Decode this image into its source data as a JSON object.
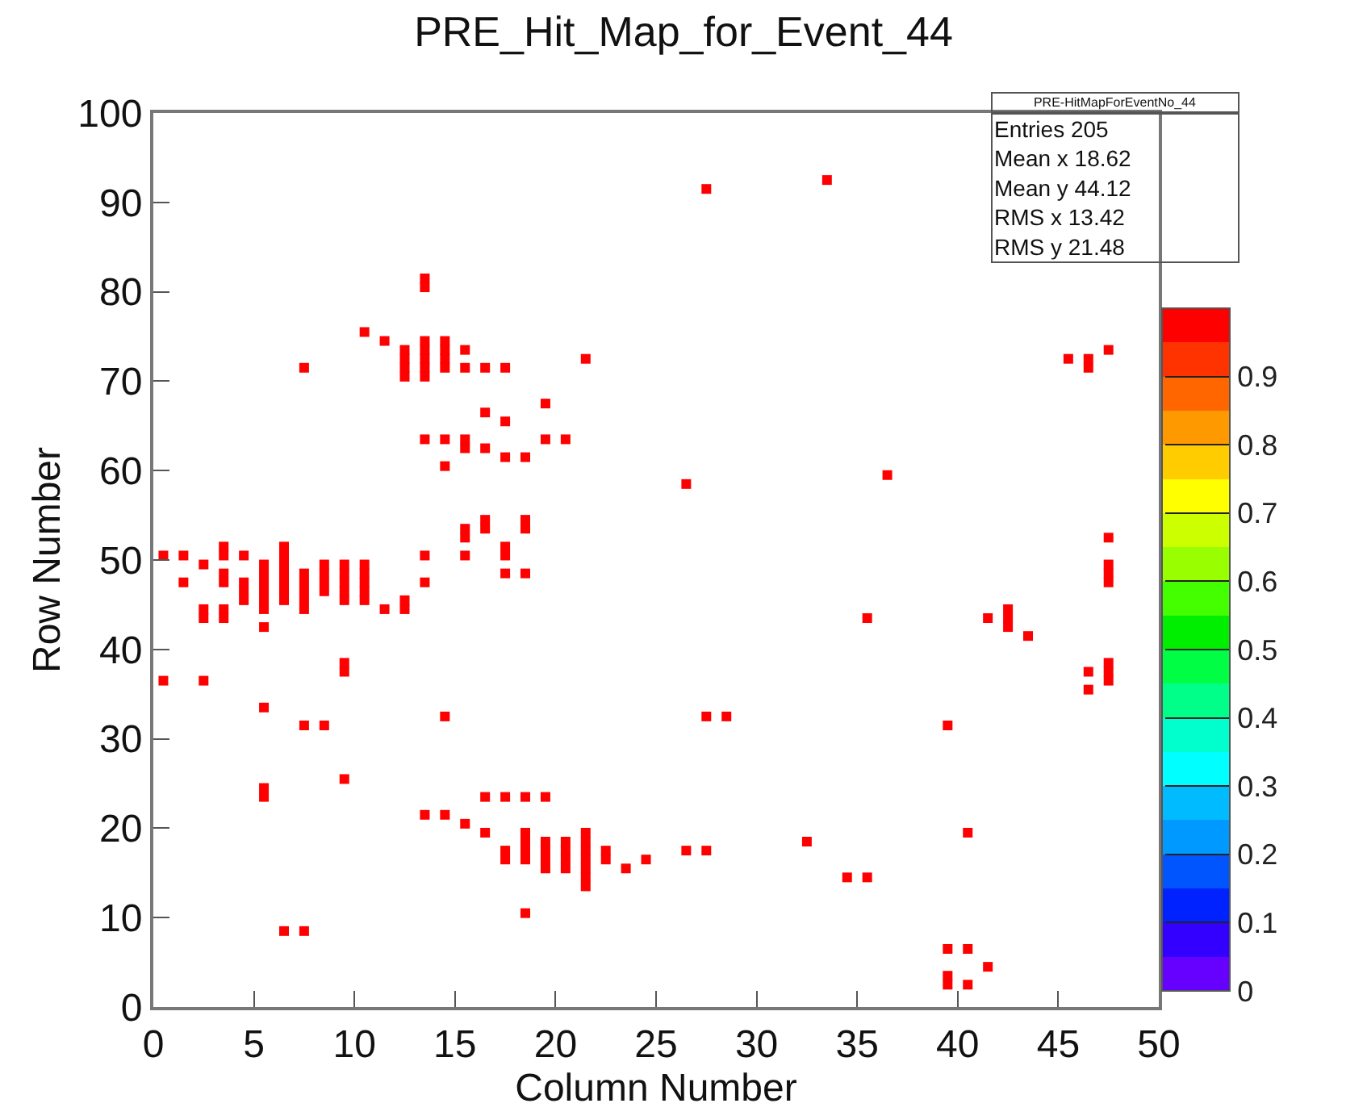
{
  "chart_data": {
    "type": "scatter",
    "title": "PRE_Hit_Map_for_Event_44",
    "xlabel": "Column Number",
    "ylabel": "Row Number",
    "xlim": [
      0,
      50
    ],
    "xticks": [
      0,
      5,
      10,
      15,
      20,
      25,
      30,
      35,
      40,
      45,
      50
    ],
    "ylim": [
      0,
      100
    ],
    "yticks": [
      0,
      10,
      20,
      30,
      40,
      50,
      60,
      70,
      80,
      90,
      100
    ],
    "legend": false,
    "marker": "square",
    "clim": [
      0,
      1
    ],
    "cticks": [
      0,
      0.1,
      0.2,
      0.3,
      0.4,
      0.5,
      0.6,
      0.7,
      0.8,
      0.9
    ],
    "annotations": [
      "PRE-HitMapForEventNo_44",
      "Entries 205",
      "Mean x 18.62",
      "Mean y 44.12",
      "RMS x 13.42",
      "RMS y 21.48"
    ],
    "series": [
      {
        "x": [
          13.5,
          13.5,
          10.5,
          11.5,
          12.5,
          12.5,
          12.5,
          12.5,
          13.5,
          13.5,
          13.5,
          13.5,
          13.5,
          14.5,
          14.5,
          14.5,
          14.5,
          15.5,
          15.5,
          16.5,
          17.5,
          21.5,
          7.5,
          16.5,
          17.5,
          13.5,
          14.5,
          15.5,
          15.5,
          16.5,
          17.5,
          18.5,
          14.5,
          19.5,
          19.5,
          20.5,
          26.5,
          36.5,
          27.5,
          33.5,
          15.5,
          15.5,
          15.5,
          16.5,
          16.5,
          17.5,
          17.5,
          17.5,
          18.5,
          18.5,
          18.5,
          13.5,
          13.5,
          0.5,
          0.5,
          1.5,
          1.5,
          2.5,
          2.5,
          2.5,
          3.5,
          3.5,
          3.5,
          3.5,
          3.5,
          3.5,
          4.5,
          4.5,
          4.5,
          4.5,
          5.5,
          5.5,
          5.5,
          5.5,
          5.5,
          5.5,
          5.5,
          6.5,
          6.5,
          6.5,
          6.5,
          6.5,
          6.5,
          6.5,
          7.5,
          7.5,
          7.5,
          7.5,
          7.5,
          8.5,
          8.5,
          8.5,
          8.5,
          9.5,
          9.5,
          9.5,
          9.5,
          9.5,
          10.5,
          10.5,
          10.5,
          10.5,
          10.5,
          11.5,
          12.5,
          12.5,
          2.5,
          9.5,
          9.5,
          5.5,
          14.5,
          7.5,
          8.5,
          27.5,
          28.5,
          5.5,
          5.5,
          9.5,
          6.5,
          7.5,
          13.5,
          14.5,
          15.5,
          16.5,
          16.5,
          17.5,
          17.5,
          17.5,
          18.5,
          18.5,
          18.5,
          18.5,
          18.5,
          18.5,
          19.5,
          19.5,
          19.5,
          19.5,
          19.5,
          20.5,
          20.5,
          20.5,
          20.5,
          21.5,
          21.5,
          21.5,
          21.5,
          21.5,
          21.5,
          21.5,
          22.5,
          22.5,
          23.5,
          24.5,
          26.5,
          27.5,
          32.5,
          34.5,
          35.5,
          35.5,
          41.5,
          42.5,
          42.5,
          42.5,
          43.5,
          39.5,
          40.5,
          39.5,
          39.5,
          39.5,
          40.5,
          40.5,
          41.5,
          46.5,
          46.5,
          47.5,
          47.5,
          47.5,
          47.5,
          47.5,
          47.5,
          47.5,
          45.5,
          46.5,
          46.5,
          47.5
        ],
        "values": [
          80.5,
          81.5,
          75.5,
          74.5,
          73.5,
          72.5,
          71.5,
          70.5,
          74.5,
          73.5,
          72.5,
          71.5,
          70.5,
          74.5,
          73.5,
          72.5,
          71.5,
          73.5,
          71.5,
          71.5,
          71.5,
          72.5,
          71.5,
          66.5,
          65.5,
          63.5,
          63.5,
          62.5,
          63.5,
          62.5,
          61.5,
          61.5,
          60.5,
          67.5,
          63.5,
          63.5,
          58.5,
          59.5,
          91.5,
          92.5,
          50.5,
          52.5,
          53.5,
          53.5,
          54.5,
          51.5,
          50.5,
          48.5,
          53.5,
          54.5,
          48.5,
          50.5,
          47.5,
          50.5,
          36.5,
          50.5,
          47.5,
          49.5,
          44.5,
          43.5,
          51.5,
          50.5,
          48.5,
          47.5,
          44.5,
          43.5,
          50.5,
          47.5,
          46.5,
          45.5,
          49.5,
          48.5,
          47.5,
          46.5,
          45.5,
          44.5,
          42.5,
          51.5,
          50.5,
          49.5,
          48.5,
          47.5,
          46.5,
          45.5,
          48.5,
          47.5,
          46.5,
          45.5,
          44.5,
          49.5,
          48.5,
          47.5,
          46.5,
          49.5,
          48.5,
          47.5,
          46.5,
          45.5,
          49.5,
          48.5,
          47.5,
          46.5,
          45.5,
          44.5,
          45.5,
          44.5,
          36.5,
          38.5,
          37.5,
          33.5,
          32.5,
          31.5,
          31.5,
          32.5,
          32.5,
          24.5,
          23.5,
          25.5,
          8.5,
          8.5,
          21.5,
          21.5,
          20.5,
          23.5,
          19.5,
          23.5,
          17.5,
          16.5,
          23.5,
          19.5,
          18.5,
          17.5,
          16.5,
          10.5,
          23.5,
          18.5,
          17.5,
          16.5,
          15.5,
          18.5,
          17.5,
          16.5,
          15.5,
          19.5,
          18.5,
          17.5,
          16.5,
          15.5,
          14.5,
          13.5,
          17.5,
          16.5,
          15.5,
          16.5,
          17.5,
          17.5,
          18.5,
          14.5,
          14.5,
          43.5,
          43.5,
          44.5,
          43.5,
          42.5,
          41.5,
          31.5,
          19.5,
          6.5,
          3.5,
          2.5,
          6.5,
          2.5,
          4.5,
          37.5,
          35.5,
          38.5,
          37.5,
          36.5,
          52.5,
          49.5,
          48.5,
          47.5,
          72.5,
          72.5,
          71.5,
          73.5
        ],
        "cvalues": [
          1,
          1,
          1,
          1,
          1,
          1,
          1,
          1,
          1,
          1,
          1,
          1,
          1,
          1,
          1,
          1,
          1,
          1,
          1,
          1,
          1,
          1,
          1,
          1,
          1,
          1,
          1,
          1,
          1,
          1,
          1,
          1,
          1,
          1,
          1,
          1,
          1,
          1,
          1,
          1,
          1,
          1,
          1,
          1,
          1,
          1,
          1,
          1,
          1,
          1,
          1,
          1,
          1,
          1,
          1,
          1,
          1,
          1,
          1,
          1,
          1,
          1,
          1,
          1,
          1,
          1,
          1,
          1,
          1,
          1,
          1,
          1,
          1,
          1,
          1,
          1,
          1,
          1,
          1,
          1,
          1,
          1,
          1,
          1,
          1,
          1,
          1,
          1,
          1,
          1,
          1,
          1,
          1,
          1,
          1,
          1,
          1,
          1,
          1,
          1,
          1,
          1,
          1,
          1,
          1,
          1,
          1,
          1,
          1,
          1,
          1,
          1,
          1,
          1,
          1,
          1,
          1,
          1,
          1,
          1,
          1,
          1,
          1,
          1,
          1,
          1,
          1,
          1,
          1,
          1,
          1,
          1,
          1,
          1,
          1,
          1,
          1,
          1,
          1,
          1,
          1,
          1,
          1,
          1,
          1,
          1,
          1,
          1,
          1,
          1,
          1,
          1,
          1,
          1,
          1,
          1,
          1,
          1,
          1,
          1,
          1,
          1,
          1,
          1,
          1,
          1,
          1,
          1,
          1,
          1,
          1,
          1,
          1,
          1,
          1,
          1,
          1,
          1,
          1,
          1,
          1,
          1,
          1,
          1,
          1,
          1
        ]
      }
    ]
  }
}
